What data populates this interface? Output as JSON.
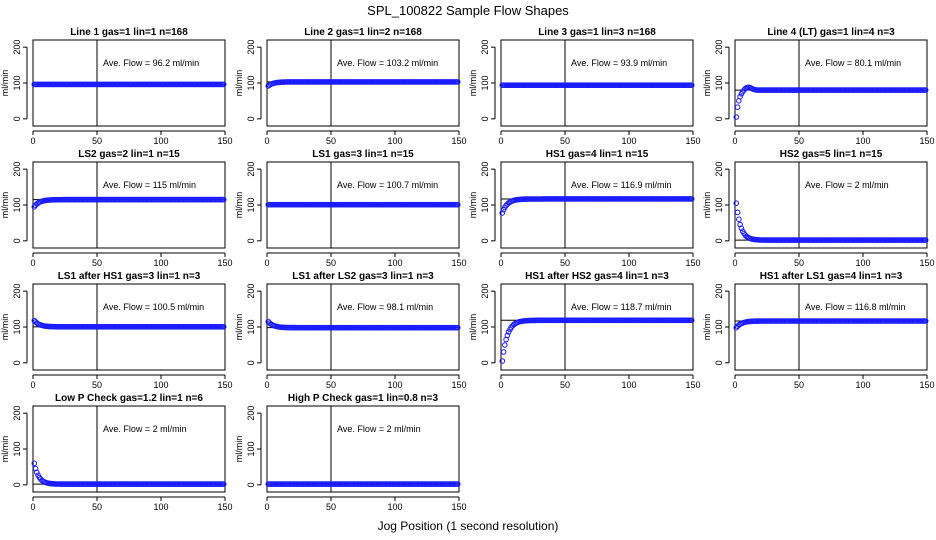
{
  "title": "SPL_100822  Sample Flow Shapes",
  "xlabel": "Jog Position (1 second resolution)",
  "chart_data": [
    {
      "type": "scatter",
      "title": "Line 1 gas=1 lin=1 n=168",
      "ylabel": "ml/min",
      "annotation": "Ave. Flow =  96.2  ml/min",
      "xlim": [
        0,
        150
      ],
      "ylim": [
        -20,
        220
      ],
      "yticks": [
        0,
        100,
        200
      ],
      "xticks": [
        0,
        50,
        100,
        150
      ],
      "vline": 50,
      "hline": 96.2,
      "shape": "flat",
      "start": 100,
      "plateau": 96.2
    },
    {
      "type": "scatter",
      "title": "Line 2 gas=1 lin=2 n=168",
      "ylabel": "ml/min",
      "annotation": "Ave. Flow =  103.2  ml/min",
      "xlim": [
        0,
        150
      ],
      "ylim": [
        -20,
        220
      ],
      "yticks": [
        0,
        100,
        200
      ],
      "xticks": [
        0,
        50,
        100,
        150
      ],
      "vline": 50,
      "hline": 103.2,
      "shape": "rise",
      "start": 92,
      "plateau": 103.2
    },
    {
      "type": "scatter",
      "title": "Line 3 gas=1 lin=3 n=168",
      "ylabel": "ml/min",
      "annotation": "Ave. Flow =  93.9  ml/min",
      "xlim": [
        0,
        150
      ],
      "ylim": [
        -20,
        220
      ],
      "yticks": [
        0,
        100,
        200
      ],
      "xticks": [
        0,
        50,
        100,
        150
      ],
      "vline": 50,
      "hline": 93.9,
      "shape": "flat",
      "start": 93.9,
      "plateau": 93.9
    },
    {
      "type": "scatter",
      "title": "Line 4 (LT) gas=1 lin=4 n=3",
      "ylabel": "ml/min",
      "annotation": "Ave. Flow =  80.1  ml/min",
      "xlim": [
        0,
        150
      ],
      "ylim": [
        -20,
        220
      ],
      "yticks": [
        0,
        100,
        200
      ],
      "xticks": [
        0,
        50,
        100,
        150
      ],
      "vline": 50,
      "hline": 80.1,
      "shape": "overshoot",
      "start": 5,
      "plateau": 80.1
    },
    {
      "type": "scatter",
      "title": "LS2 gas=2 lin=1 n=15",
      "ylabel": "ml/min",
      "annotation": "Ave. Flow =  115  ml/min",
      "xlim": [
        0,
        150
      ],
      "ylim": [
        -20,
        220
      ],
      "yticks": [
        0,
        100,
        200
      ],
      "xticks": [
        0,
        50,
        100,
        150
      ],
      "vline": 50,
      "hline": 115,
      "shape": "rise",
      "start": 95,
      "plateau": 115
    },
    {
      "type": "scatter",
      "title": "LS1 gas=3 lin=1 n=15",
      "ylabel": "ml/min",
      "annotation": "Ave. Flow =  100.7  ml/min",
      "xlim": [
        0,
        150
      ],
      "ylim": [
        -20,
        220
      ],
      "yticks": [
        0,
        100,
        200
      ],
      "xticks": [
        0,
        50,
        100,
        150
      ],
      "vline": 50,
      "hline": 100.7,
      "shape": "flat",
      "start": 102,
      "plateau": 100.7
    },
    {
      "type": "scatter",
      "title": "HS1 gas=4 lin=1 n=15",
      "ylabel": "ml/min",
      "annotation": "Ave. Flow =  116.9  ml/min",
      "xlim": [
        0,
        150
      ],
      "ylim": [
        -20,
        220
      ],
      "yticks": [
        0,
        100,
        200
      ],
      "xticks": [
        0,
        50,
        100,
        150
      ],
      "vline": 50,
      "hline": 116.9,
      "shape": "rise",
      "start": 78,
      "plateau": 116.9
    },
    {
      "type": "scatter",
      "title": "HS2 gas=5 lin=1 n=15",
      "ylabel": "ml/min",
      "annotation": "Ave. Flow =  2  ml/min",
      "xlim": [
        0,
        150
      ],
      "ylim": [
        -20,
        220
      ],
      "yticks": [
        0,
        100,
        200
      ],
      "xticks": [
        0,
        50,
        100,
        150
      ],
      "vline": 50,
      "hline": 2,
      "shape": "decay",
      "start": 105,
      "plateau": 2
    },
    {
      "type": "scatter",
      "title": "LS1 after HS1 gas=3 lin=1 n=3",
      "ylabel": "ml/min",
      "annotation": "Ave. Flow =  100.5  ml/min",
      "xlim": [
        0,
        150
      ],
      "ylim": [
        -20,
        220
      ],
      "yticks": [
        0,
        100,
        200
      ],
      "xticks": [
        0,
        50,
        100,
        150
      ],
      "vline": 50,
      "hline": 100.5,
      "shape": "fall",
      "start": 118,
      "plateau": 100.5
    },
    {
      "type": "scatter",
      "title": "LS1 after LS2 gas=3 lin=1 n=3",
      "ylabel": "ml/min",
      "annotation": "Ave. Flow =  98.1  ml/min",
      "xlim": [
        0,
        150
      ],
      "ylim": [
        -20,
        220
      ],
      "yticks": [
        0,
        100,
        200
      ],
      "xticks": [
        0,
        50,
        100,
        150
      ],
      "vline": 50,
      "hline": 98.1,
      "shape": "fall",
      "start": 115,
      "plateau": 98.1
    },
    {
      "type": "scatter",
      "title": "HS1 after HS2 gas=4 lin=1 n=3",
      "ylabel": "ml/min",
      "annotation": "Ave. Flow =  118.7  ml/min",
      "xlim": [
        0,
        150
      ],
      "ylim": [
        -20,
        220
      ],
      "yticks": [
        0,
        100,
        200
      ],
      "xticks": [
        0,
        50,
        100,
        150
      ],
      "vline": 50,
      "hline": 118.7,
      "shape": "rise",
      "start": 5,
      "plateau": 118.7
    },
    {
      "type": "scatter",
      "title": "HS1 after LS1 gas=4 lin=1 n=3",
      "ylabel": "ml/min",
      "annotation": "Ave. Flow =  116.8  ml/min",
      "xlim": [
        0,
        150
      ],
      "ylim": [
        -20,
        220
      ],
      "yticks": [
        0,
        100,
        200
      ],
      "xticks": [
        0,
        50,
        100,
        150
      ],
      "vline": 50,
      "hline": 116.8,
      "shape": "rise",
      "start": 98,
      "plateau": 116.8
    },
    {
      "type": "scatter",
      "title": "Low P Check gas=1.2 lin=1 n=6",
      "ylabel": "ml/min",
      "annotation": "Ave. Flow =  2  ml/min",
      "xlim": [
        0,
        150
      ],
      "ylim": [
        -20,
        220
      ],
      "yticks": [
        0,
        100,
        200
      ],
      "xticks": [
        0,
        50,
        100,
        150
      ],
      "vline": 50,
      "hline": 2,
      "shape": "decay",
      "start": 60,
      "plateau": 2
    },
    {
      "type": "scatter",
      "title": "High P Check gas=1 lin=0.8 n=3",
      "ylabel": "ml/min",
      "annotation": "Ave. Flow =  2  ml/min",
      "xlim": [
        0,
        150
      ],
      "ylim": [
        -20,
        220
      ],
      "yticks": [
        0,
        100,
        200
      ],
      "xticks": [
        0,
        50,
        100,
        150
      ],
      "vline": 50,
      "hline": 2,
      "shape": "flat",
      "start": 2,
      "plateau": 2
    }
  ]
}
